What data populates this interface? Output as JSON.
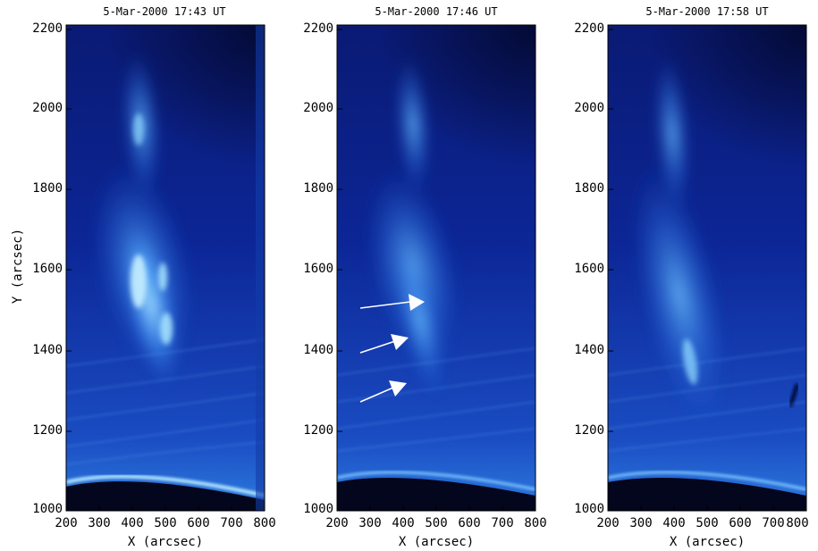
{
  "panels": [
    {
      "title": "5-Mar-2000 17:43 UT"
    },
    {
      "title": "5-Mar-2000 17:46 UT"
    },
    {
      "title": "5-Mar-2000 17:58 UT"
    }
  ],
  "axes": {
    "ylabel": "Y (arcsec)",
    "xlabel": "X (arcsec)",
    "x_ticks": [
      "200",
      "300",
      "400",
      "500",
      "600",
      "700",
      "800"
    ],
    "y_ticks": [
      "1000",
      "1200",
      "1400",
      "1600",
      "1800",
      "2000",
      "2200"
    ]
  },
  "colors": {
    "background": "#0a1f8a",
    "dark": "#050f4a",
    "bright": "#7fd0ff",
    "limb": "#a6e6ff",
    "arrow": "#ffffff"
  }
}
